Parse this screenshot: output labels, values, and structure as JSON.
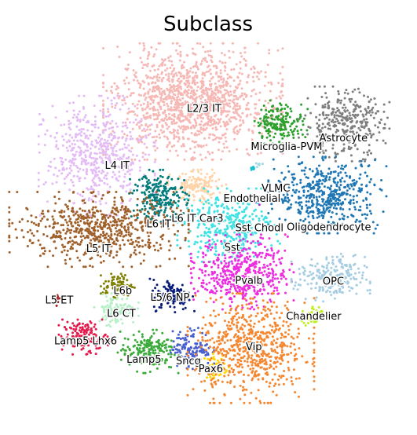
{
  "chart_data": {
    "type": "scatter",
    "title": "Subclass",
    "xlabel": "",
    "ylabel": "",
    "axes_visible": false,
    "grid": false,
    "legend": "none",
    "xlim": [
      0,
      100
    ],
    "ylim": [
      0,
      100
    ],
    "clusters": [
      {
        "name": "L2/3 IT",
        "color": "#f5b8b5",
        "x": 45.6,
        "y": 84.5,
        "sx": 10.5,
        "sy": 7.0,
        "n": 1300
      },
      {
        "name": "L4 IT",
        "color": "#e4bcf5",
        "x": 19.7,
        "y": 69.5,
        "sx": 6.8,
        "sy": 7.2,
        "n": 550
      },
      {
        "name": "Microglia-PVM",
        "color": "#2ca02c",
        "x": 69.1,
        "y": 78.8,
        "sx": 3.2,
        "sy": 2.6,
        "n": 180
      },
      {
        "name": "Astrocyte",
        "color": "#7f7f7f",
        "x": 86.3,
        "y": 78.3,
        "sx": 5.3,
        "sy": 4.5,
        "n": 330
      },
      {
        "name": "VLMC",
        "color": "#17becf",
        "x": 61.6,
        "y": 66.0,
        "sx": 0.5,
        "sy": 0.5,
        "n": 8
      },
      {
        "name": "Endothelial",
        "color": "#9edae5",
        "x": 63.5,
        "y": 67.3,
        "sx": 0.4,
        "sy": 0.4,
        "n": 6
      },
      {
        "name": "Oligodendrocyte",
        "color": "#1f77b4",
        "x": 81.8,
        "y": 58.6,
        "sx": 6.9,
        "sy": 4.6,
        "n": 480
      },
      {
        "name": "L6 IT Car3",
        "color": "#ffd3a8",
        "x": 46.7,
        "y": 60.8,
        "sx": 3.4,
        "sy": 2.1,
        "n": 150
      },
      {
        "name": "L6 IT",
        "color": "#007b7b",
        "x": 36.5,
        "y": 58.2,
        "sx": 3.5,
        "sy": 3.2,
        "n": 220
      },
      {
        "name": "Sst Chodl",
        "color": "#9b30c8",
        "x": 63.2,
        "y": 56.9,
        "sx": 0.5,
        "sy": 0.5,
        "n": 10
      },
      {
        "name": "Sst",
        "color": "#40e3e3",
        "x": 55.2,
        "y": 50.3,
        "sx": 6.0,
        "sy": 4.4,
        "n": 380
      },
      {
        "name": "L5 IT",
        "color": "#a0602b",
        "x": 20.3,
        "y": 49.1,
        "sx": 10.5,
        "sy": 4.5,
        "n": 650
      },
      {
        "name": "Pvalb",
        "color": "#ed2ee0",
        "x": 58.9,
        "y": 37.3,
        "sx": 6.0,
        "sy": 4.5,
        "n": 480
      },
      {
        "name": "OPC",
        "color": "#a6cde2",
        "x": 82.7,
        "y": 35.4,
        "sx": 4.6,
        "sy": 3.0,
        "n": 220
      },
      {
        "name": "L6b",
        "color": "#808000",
        "x": 25.4,
        "y": 33.6,
        "sx": 2.0,
        "sy": 1.5,
        "n": 90
      },
      {
        "name": "L5 ET",
        "color": "#a41b1b",
        "x": 9.1,
        "y": 29.8,
        "sx": 0.4,
        "sy": 0.8,
        "n": 18
      },
      {
        "name": "L5/6 NP",
        "color": "#081a78",
        "x": 40.0,
        "y": 31.0,
        "sx": 2.6,
        "sy": 2.1,
        "n": 120
      },
      {
        "name": "L6 CT",
        "color": "#b5f0c6",
        "x": 25.0,
        "y": 26.8,
        "sx": 2.6,
        "sy": 2.0,
        "n": 110
      },
      {
        "name": "Chandelier",
        "color": "#c0ef20",
        "x": 77.9,
        "y": 25.5,
        "sx": 1.3,
        "sy": 1.3,
        "n": 50
      },
      {
        "name": "Lamp5 Lhx6",
        "color": "#e31a4b",
        "x": 16.4,
        "y": 19.3,
        "sx": 3.0,
        "sy": 2.1,
        "n": 160
      },
      {
        "name": "Lamp5",
        "color": "#3aaa3a",
        "x": 33.5,
        "y": 15.3,
        "sx": 3.6,
        "sy": 2.6,
        "n": 200
      },
      {
        "name": "Sncg",
        "color": "#4a60d0",
        "x": 45.3,
        "y": 16.2,
        "sx": 2.6,
        "sy": 2.5,
        "n": 140
      },
      {
        "name": "Pax6",
        "color": "#ffd800",
        "x": 51.9,
        "y": 11.0,
        "sx": 1.6,
        "sy": 1.7,
        "n": 60
      },
      {
        "name": "Vip",
        "color": "#f58731",
        "x": 61.2,
        "y": 16.2,
        "sx": 7.4,
        "sy": 6.6,
        "n": 650
      }
    ],
    "labels": [
      {
        "text": "L2/3 IT",
        "x": 48.6,
        "y": 82.4,
        "anchor": "middle"
      },
      {
        "text": "Microglia-PVM",
        "x": 70.8,
        "y": 71.8,
        "anchor": "middle"
      },
      {
        "text": "Astrocyte",
        "x": 86.1,
        "y": 74.2,
        "anchor": "middle"
      },
      {
        "text": "L4 IT",
        "x": 25.2,
        "y": 66.6,
        "anchor": "middle"
      },
      {
        "text": "VLMC",
        "x": 67.9,
        "y": 60.3,
        "anchor": "middle"
      },
      {
        "text": "Endothelial",
        "x": 61.5,
        "y": 57.5,
        "anchor": "middle"
      },
      {
        "text": "L6 IT Car3",
        "x": 46.8,
        "y": 52.0,
        "anchor": "middle"
      },
      {
        "text": "L6 IT",
        "x": 36.4,
        "y": 50.4,
        "anchor": "middle"
      },
      {
        "text": "Sst Chodl",
        "x": 57.0,
        "y": 49.3,
        "anchor": "start"
      },
      {
        "text": "Oligodendrocyte",
        "x": 82.2,
        "y": 49.6,
        "anchor": "middle"
      },
      {
        "text": "L5 IT",
        "x": 20.2,
        "y": 43.6,
        "anchor": "middle"
      },
      {
        "text": "Sst",
        "x": 56.2,
        "y": 43.9,
        "anchor": "middle"
      },
      {
        "text": "Pvalb",
        "x": 60.7,
        "y": 34.8,
        "anchor": "middle"
      },
      {
        "text": "OPC",
        "x": 83.4,
        "y": 34.6,
        "anchor": "middle"
      },
      {
        "text": "L6b",
        "x": 26.7,
        "y": 32.0,
        "anchor": "middle"
      },
      {
        "text": "L5/6 NP",
        "x": 39.4,
        "y": 30.1,
        "anchor": "middle"
      },
      {
        "text": "L5 ET",
        "x": 9.6,
        "y": 29.4,
        "anchor": "middle"
      },
      {
        "text": "L6 CT",
        "x": 26.3,
        "y": 25.7,
        "anchor": "middle"
      },
      {
        "text": "Chandelier",
        "x": 78.1,
        "y": 24.9,
        "anchor": "middle"
      },
      {
        "text": "Lamp5 Lhx6",
        "x": 16.7,
        "y": 18.0,
        "anchor": "middle"
      },
      {
        "text": "Vip",
        "x": 62.0,
        "y": 16.4,
        "anchor": "middle"
      },
      {
        "text": "Lamp5",
        "x": 32.4,
        "y": 12.9,
        "anchor": "middle"
      },
      {
        "text": "Sncg",
        "x": 44.4,
        "y": 12.5,
        "anchor": "middle"
      },
      {
        "text": "Pax6",
        "x": 50.4,
        "y": 10.3,
        "anchor": "middle"
      }
    ]
  }
}
